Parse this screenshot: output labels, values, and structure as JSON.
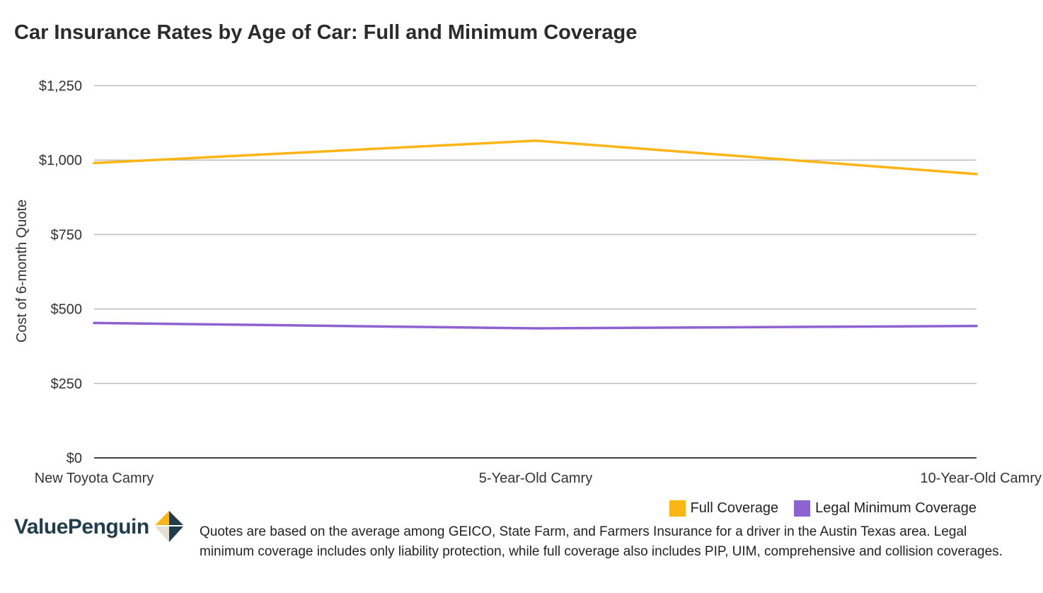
{
  "title": "Car Insurance Rates by Age of Car: Full and Minimum Coverage",
  "chart_data": {
    "type": "line",
    "title": "Car Insurance Rates by Age of Car: Full and Minimum Coverage",
    "xlabel": "",
    "ylabel": "Cost of 6-month Quote",
    "categories": [
      "New Toyota Camry",
      "5-Year-Old Camry",
      "10-Year-Old Camry"
    ],
    "ylim": [
      0,
      1250
    ],
    "yticks": [
      0,
      250,
      500,
      750,
      1000,
      1250
    ],
    "ytick_labels": [
      "$0",
      "$250",
      "$500",
      "$750",
      "$1,000",
      "$1,250"
    ],
    "grid": true,
    "legend_position": "bottom-right",
    "series": [
      {
        "name": "Full Coverage",
        "color": "#FBB615",
        "values": [
          990,
          1065,
          953
        ]
      },
      {
        "name": "Legal Minimum Coverage",
        "color": "#8E62D0",
        "values": [
          453,
          435,
          443
        ]
      }
    ]
  },
  "logo": {
    "text": "ValuePenguin",
    "icon": "valuepenguin-logo-icon"
  },
  "footnote": "Quotes are based on the average among GEICO, State Farm, and Farmers Insurance for a driver in the Austin Texas area. Legal minimum coverage includes only liability protection, while full coverage also includes PIP, UIM, comprehensive and collision coverages."
}
